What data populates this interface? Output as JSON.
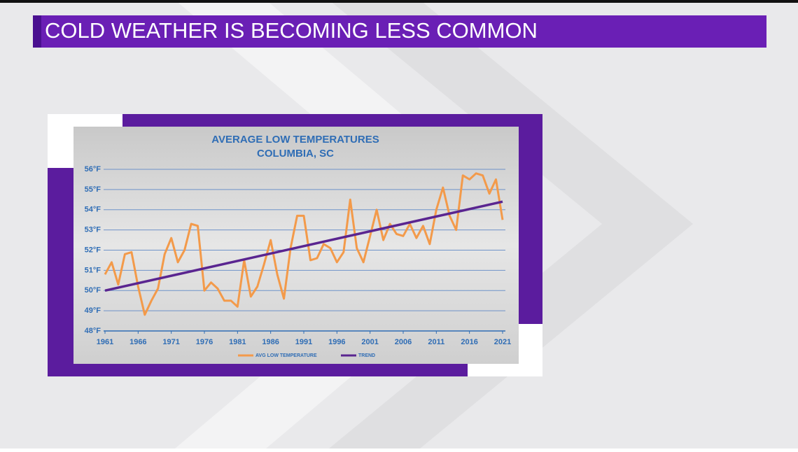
{
  "header": {
    "title": "COLD WEATHER IS BECOMING LESS COMMON"
  },
  "chart_data": {
    "type": "line",
    "title": "AVERAGE LOW TEMPERATURES",
    "subtitle": "COLUMBIA, SC",
    "xlim": [
      1961,
      2021
    ],
    "xticks": [
      1961,
      1966,
      1971,
      1976,
      1981,
      1986,
      1991,
      1996,
      2001,
      2006,
      2011,
      2016,
      2021
    ],
    "ylim": [
      48,
      56
    ],
    "yticks": [
      {
        "value": 48,
        "label": "48°F"
      },
      {
        "value": 49,
        "label": "49°F"
      },
      {
        "value": 50,
        "label": "50°F"
      },
      {
        "value": 51,
        "label": "51°F"
      },
      {
        "value": 52,
        "label": "52°F"
      },
      {
        "value": 53,
        "label": "53°F"
      },
      {
        "value": 54,
        "label": "54°F"
      },
      {
        "value": 55,
        "label": "55°F"
      },
      {
        "value": 56,
        "label": "56°F"
      }
    ],
    "grid": true,
    "legend": "bottom",
    "series": [
      {
        "name": "AVG LOW TEMPERATURE",
        "color": "#f39a4a",
        "x": [
          1961,
          1962,
          1963,
          1964,
          1965,
          1966,
          1967,
          1968,
          1969,
          1970,
          1971,
          1972,
          1973,
          1974,
          1975,
          1976,
          1977,
          1978,
          1979,
          1980,
          1981,
          1982,
          1983,
          1984,
          1985,
          1986,
          1987,
          1988,
          1989,
          1990,
          1991,
          1992,
          1993,
          1994,
          1995,
          1996,
          1997,
          1998,
          1999,
          2000,
          2001,
          2002,
          2003,
          2004,
          2005,
          2006,
          2007,
          2008,
          2009,
          2010,
          2011,
          2012,
          2013,
          2014,
          2015,
          2016,
          2017,
          2018,
          2019,
          2020,
          2021
        ],
        "values": [
          50.8,
          51.4,
          50.3,
          51.8,
          51.9,
          50.2,
          48.8,
          49.5,
          50.1,
          51.8,
          52.6,
          51.4,
          52.0,
          53.3,
          53.2,
          50.0,
          50.4,
          50.1,
          49.5,
          49.5,
          49.2,
          51.5,
          49.7,
          50.2,
          51.3,
          52.5,
          50.8,
          49.6,
          52.1,
          53.7,
          53.7,
          51.5,
          51.6,
          52.3,
          52.1,
          51.4,
          51.9,
          54.5,
          52.1,
          51.4,
          52.7,
          54.0,
          52.5,
          53.3,
          52.8,
          52.7,
          53.3,
          52.6,
          53.2,
          52.3,
          54.0,
          55.1,
          53.7,
          53.0,
          55.7,
          55.5,
          55.8,
          55.7,
          54.8,
          55.5,
          53.5
        ]
      },
      {
        "name": "TREND",
        "color": "#5a2590",
        "x": [
          1961,
          2021
        ],
        "values": [
          50.0,
          54.4
        ]
      }
    ]
  }
}
